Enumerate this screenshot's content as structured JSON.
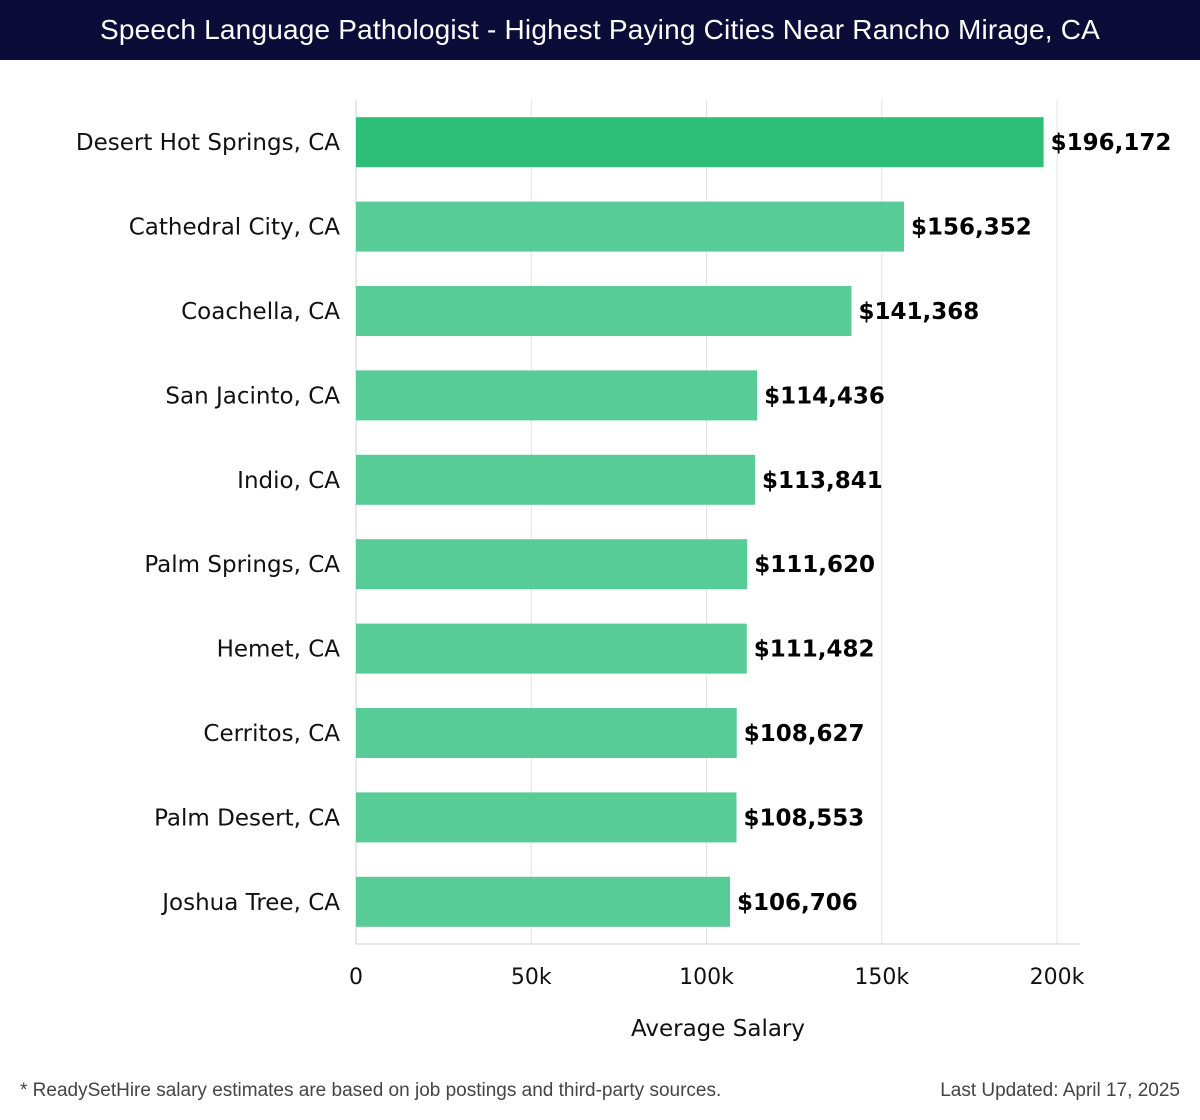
{
  "header": {
    "title": "Speech Language Pathologist - Highest Paying Cities Near Rancho Mirage, CA"
  },
  "chart_data": {
    "type": "bar",
    "orientation": "horizontal",
    "title": "Speech Language Pathologist - Highest Paying Cities Near Rancho Mirage, CA",
    "xlabel": "Average Salary",
    "ylabel": "",
    "xlim": [
      0,
      200000
    ],
    "x_ticks": [
      0,
      50000,
      100000,
      150000,
      200000
    ],
    "x_tick_labels": [
      "0",
      "50k",
      "100k",
      "150k",
      "200k"
    ],
    "grid": true,
    "categories": [
      "Desert Hot Springs, CA",
      "Cathedral City, CA",
      "Coachella, CA",
      "San Jacinto, CA",
      "Indio, CA",
      "Palm Springs, CA",
      "Hemet, CA",
      "Cerritos, CA",
      "Palm Desert, CA",
      "Joshua Tree, CA"
    ],
    "values": [
      196172,
      156352,
      141368,
      114436,
      113841,
      111620,
      111482,
      108627,
      108553,
      106706
    ],
    "value_labels": [
      "$196,172",
      "$156,352",
      "$141,368",
      "$114,436",
      "$113,841",
      "$111,620",
      "$111,482",
      "$108,627",
      "$108,553",
      "$106,706"
    ],
    "colors": {
      "top_bar": "#2cbf78",
      "bar": "#57cc96",
      "grid": "#e3e3e3",
      "axis": "#cfcfcf"
    }
  },
  "footer": {
    "note": "* ReadySetHire salary estimates are based on job postings and third-party sources.",
    "updated": "Last Updated: April 17, 2025"
  }
}
